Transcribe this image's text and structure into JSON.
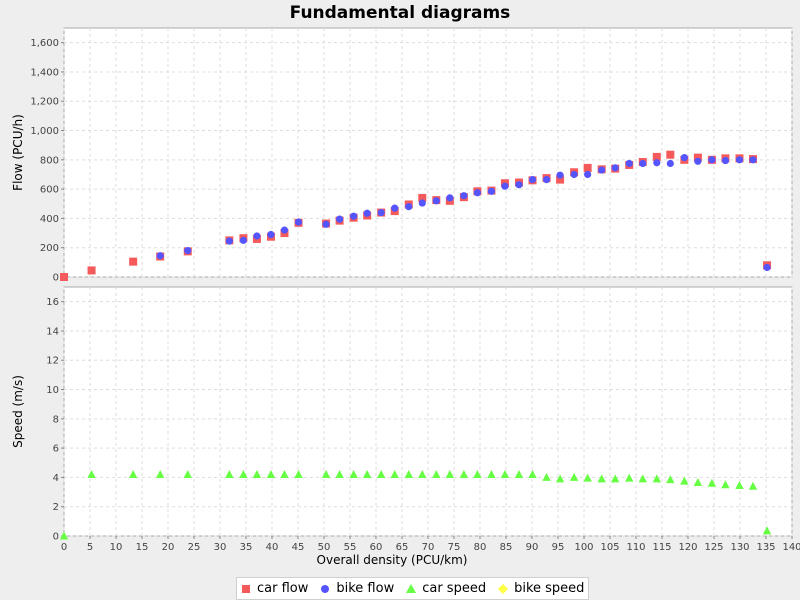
{
  "title": "Fundamental diagrams",
  "chart_data": [
    {
      "type": "scatter",
      "panel": "flow",
      "ylabel": "Flow (PCU/h)",
      "xlabel": "Overall density (PCU/km)",
      "xlim": [
        0,
        140
      ],
      "ylim": [
        0,
        1700
      ],
      "xticks": [
        0,
        5,
        10,
        15,
        20,
        25,
        30,
        35,
        40,
        45,
        50,
        55,
        60,
        65,
        70,
        75,
        80,
        85,
        90,
        95,
        100,
        105,
        110,
        115,
        120,
        125,
        130,
        135,
        140
      ],
      "yticks": [
        0,
        200,
        400,
        600,
        800,
        1000,
        1200,
        1400,
        1600
      ],
      "ytick_labels": [
        "0",
        "200",
        "400",
        "600",
        "800",
        "1,000",
        "1,200",
        "1,400",
        "1,600"
      ],
      "grid": true,
      "series": [
        {
          "name": "car flow",
          "marker": "square",
          "color": "#f55a5a",
          "points": [
            [
              0,
              0
            ],
            [
              5.3,
              45
            ],
            [
              13.3,
              105
            ],
            [
              18.5,
              140
            ],
            [
              23.8,
              175
            ],
            [
              31.8,
              250
            ],
            [
              34.5,
              265
            ],
            [
              37.1,
              260
            ],
            [
              39.8,
              275
            ],
            [
              42.4,
              300
            ],
            [
              45.1,
              370
            ],
            [
              50.4,
              365
            ],
            [
              53.0,
              385
            ],
            [
              55.7,
              405
            ],
            [
              58.3,
              420
            ],
            [
              61.0,
              440
            ],
            [
              63.6,
              450
            ],
            [
              66.3,
              495
            ],
            [
              68.9,
              540
            ],
            [
              71.6,
              525
            ],
            [
              74.2,
              520
            ],
            [
              76.9,
              545
            ],
            [
              79.5,
              585
            ],
            [
              82.2,
              590
            ],
            [
              84.8,
              640
            ],
            [
              87.5,
              645
            ],
            [
              90.1,
              660
            ],
            [
              92.8,
              675
            ],
            [
              95.4,
              665
            ],
            [
              98.1,
              715
            ],
            [
              100.7,
              745
            ],
            [
              103.4,
              735
            ],
            [
              106.0,
              740
            ],
            [
              108.7,
              765
            ],
            [
              111.3,
              785
            ],
            [
              114.0,
              820
            ],
            [
              116.6,
              835
            ],
            [
              119.3,
              800
            ],
            [
              121.9,
              815
            ],
            [
              124.6,
              800
            ],
            [
              127.2,
              810
            ],
            [
              129.9,
              810
            ],
            [
              132.5,
              805
            ],
            [
              135.2,
              80
            ]
          ]
        },
        {
          "name": "bike flow",
          "marker": "circle",
          "color": "#5555ff",
          "points": [
            [
              18.5,
              145
            ],
            [
              23.8,
              180
            ],
            [
              31.8,
              245
            ],
            [
              34.5,
              250
            ],
            [
              37.1,
              280
            ],
            [
              39.8,
              290
            ],
            [
              42.4,
              320
            ],
            [
              45.1,
              375
            ],
            [
              50.4,
              360
            ],
            [
              53.0,
              395
            ],
            [
              55.7,
              415
            ],
            [
              58.3,
              435
            ],
            [
              61.0,
              440
            ],
            [
              63.6,
              470
            ],
            [
              66.3,
              480
            ],
            [
              68.9,
              505
            ],
            [
              71.6,
              520
            ],
            [
              74.2,
              540
            ],
            [
              76.9,
              555
            ],
            [
              79.5,
              575
            ],
            [
              82.2,
              585
            ],
            [
              84.8,
              620
            ],
            [
              87.5,
              630
            ],
            [
              90.1,
              665
            ],
            [
              92.8,
              665
            ],
            [
              95.4,
              695
            ],
            [
              98.1,
              700
            ],
            [
              100.7,
              700
            ],
            [
              103.4,
              730
            ],
            [
              106.0,
              745
            ],
            [
              108.7,
              775
            ],
            [
              111.3,
              775
            ],
            [
              114.0,
              780
            ],
            [
              116.6,
              775
            ],
            [
              119.3,
              815
            ],
            [
              121.9,
              790
            ],
            [
              124.6,
              800
            ],
            [
              127.2,
              795
            ],
            [
              129.9,
              800
            ],
            [
              132.5,
              800
            ],
            [
              135.2,
              65
            ]
          ]
        }
      ]
    },
    {
      "type": "scatter",
      "panel": "speed",
      "ylabel": "Speed (m/s)",
      "xlabel": "Overall density (PCU/km)",
      "xlim": [
        0,
        140
      ],
      "ylim": [
        0,
        17
      ],
      "xticks": [
        0,
        5,
        10,
        15,
        20,
        25,
        30,
        35,
        40,
        45,
        50,
        55,
        60,
        65,
        70,
        75,
        80,
        85,
        90,
        95,
        100,
        105,
        110,
        115,
        120,
        125,
        130,
        135,
        140
      ],
      "yticks": [
        0,
        2,
        4,
        6,
        8,
        10,
        12,
        14,
        16
      ],
      "ytick_labels": [
        "0",
        "2",
        "4",
        "6",
        "8",
        "10",
        "12",
        "14",
        "16"
      ],
      "grid": true,
      "series": [
        {
          "name": "car speed",
          "marker": "triangle",
          "color": "#66ff44",
          "points": [
            [
              0,
              0
            ],
            [
              5.3,
              4.2
            ],
            [
              13.3,
              4.2
            ],
            [
              18.5,
              4.2
            ],
            [
              23.8,
              4.2
            ],
            [
              31.8,
              4.2
            ],
            [
              34.5,
              4.2
            ],
            [
              37.1,
              4.2
            ],
            [
              39.8,
              4.2
            ],
            [
              42.4,
              4.2
            ],
            [
              45.1,
              4.2
            ],
            [
              50.4,
              4.2
            ],
            [
              53.0,
              4.2
            ],
            [
              55.7,
              4.2
            ],
            [
              58.3,
              4.2
            ],
            [
              61.0,
              4.2
            ],
            [
              63.6,
              4.2
            ],
            [
              66.3,
              4.2
            ],
            [
              68.9,
              4.2
            ],
            [
              71.6,
              4.2
            ],
            [
              74.2,
              4.2
            ],
            [
              76.9,
              4.2
            ],
            [
              79.5,
              4.2
            ],
            [
              82.2,
              4.2
            ],
            [
              84.8,
              4.2
            ],
            [
              87.5,
              4.2
            ],
            [
              90.1,
              4.2
            ],
            [
              92.8,
              4.0
            ],
            [
              95.4,
              3.9
            ],
            [
              98.1,
              4.0
            ],
            [
              100.7,
              3.95
            ],
            [
              103.4,
              3.9
            ],
            [
              106.0,
              3.9
            ],
            [
              108.7,
              3.95
            ],
            [
              111.3,
              3.9
            ],
            [
              114.0,
              3.9
            ],
            [
              116.6,
              3.85
            ],
            [
              119.3,
              3.75
            ],
            [
              121.9,
              3.65
            ],
            [
              124.6,
              3.6
            ],
            [
              127.2,
              3.5
            ],
            [
              129.9,
              3.45
            ],
            [
              132.5,
              3.4
            ],
            [
              135.2,
              0.35
            ]
          ]
        },
        {
          "name": "bike speed",
          "marker": "diamond",
          "color": "#ffff44",
          "points": []
        }
      ]
    }
  ],
  "legend": [
    {
      "label": "car flow",
      "marker": "square",
      "color": "#f55a5a"
    },
    {
      "label": "bike flow",
      "marker": "circle",
      "color": "#5555ff"
    },
    {
      "label": "car speed",
      "marker": "triangle",
      "color": "#66ff44"
    },
    {
      "label": "bike speed",
      "marker": "diamond",
      "color": "#ffff44"
    }
  ]
}
